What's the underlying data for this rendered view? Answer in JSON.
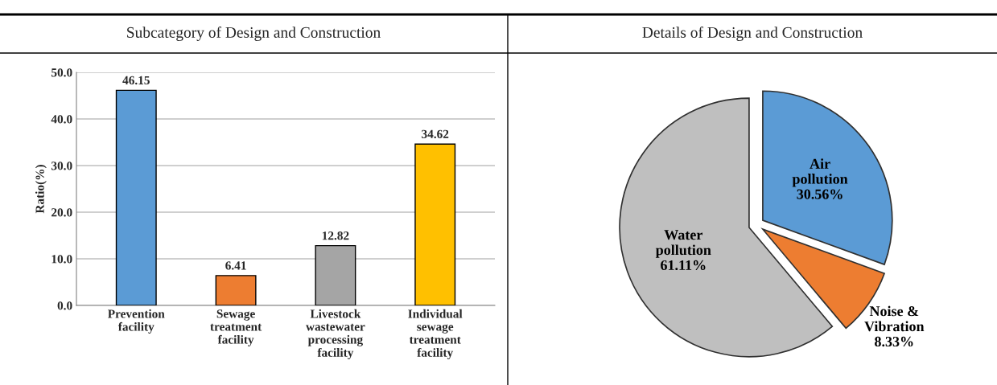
{
  "chart_data": [
    {
      "type": "bar",
      "title": "Subcategory of Design and Construction",
      "ylabel": "Ratio(%)",
      "categories": [
        "Prevention\nfacility",
        "Sewage\ntreatment\nfacility",
        "Livestock\nwastewater\nprocessing\nfacility",
        "Individual\nsewage\ntreatment\nfacility"
      ],
      "values": [
        46.15,
        6.41,
        12.82,
        34.62
      ],
      "colors": [
        "#5b9bd5",
        "#ed7d31",
        "#a5a5a5",
        "#ffc000"
      ],
      "ylim": [
        0,
        50
      ],
      "yticks": [
        {
          "value": 0,
          "label": "0.0"
        },
        {
          "value": 10,
          "label": "10.0"
        },
        {
          "value": 20,
          "label": "20.0"
        },
        {
          "value": 30,
          "label": "30.0"
        },
        {
          "value": 40,
          "label": "40.0"
        },
        {
          "value": 50,
          "label": "50.0"
        }
      ],
      "grid": "y",
      "data_labels": true
    },
    {
      "type": "pie",
      "title": "Details of Design and Construction",
      "categories": [
        "Air\npollution",
        "Noise &\nVibration",
        "Water\npollution"
      ],
      "values": [
        30.56,
        8.33,
        61.11
      ],
      "value_labels": [
        "30.56%",
        "8.33%",
        "61.11%"
      ],
      "colors": [
        "#5b9bd5",
        "#ed7d31",
        "#bfbfbf"
      ]
    }
  ]
}
